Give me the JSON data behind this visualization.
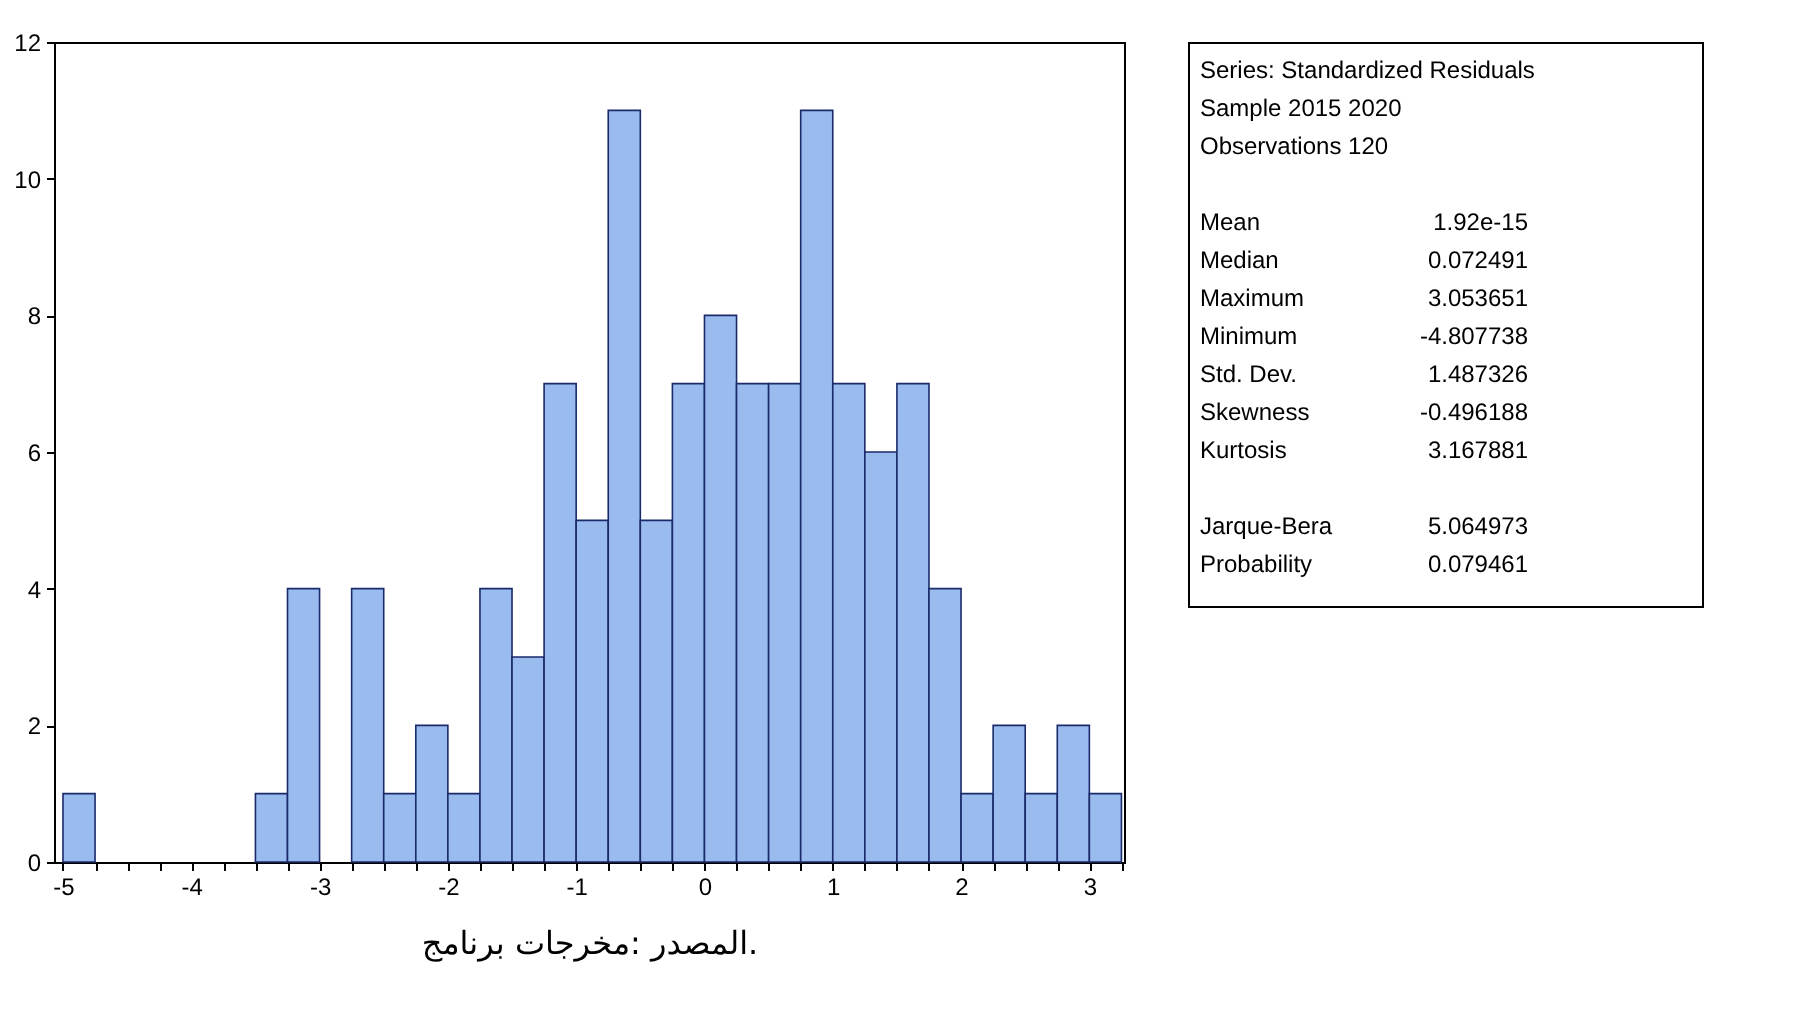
{
  "chart_data": {
    "type": "histogram",
    "bins": [
      -5,
      -4.75,
      -4.5,
      -4.25,
      -4,
      -3.75,
      -3.5,
      -3.25,
      -3,
      -2.75,
      -2.5,
      -2.25,
      -2,
      -1.75,
      -1.5,
      -1.25,
      -1,
      -0.75,
      -0.5,
      -0.25,
      0,
      0.25,
      0.5,
      0.75,
      1,
      1.25,
      1.5,
      1.75,
      2,
      2.25,
      2.5,
      2.75,
      3,
      3.25
    ],
    "values": [
      1,
      0,
      0,
      0,
      0,
      0,
      1,
      4,
      0,
      4,
      1,
      2,
      1,
      4,
      3,
      7,
      5,
      11,
      5,
      7,
      8,
      7,
      7,
      11,
      7,
      6,
      7,
      4,
      1,
      2,
      1,
      2,
      1
    ],
    "color": "#99bbee",
    "xlim": [
      -5.07,
      3.27
    ],
    "xticks": [
      -5,
      {
        "value": -4.75,
        "label": null
      },
      {
        "value": -4.5,
        "label": null
      },
      {
        "value": -4.25,
        "label": null
      },
      -4,
      {
        "value": -3.75,
        "label": null
      },
      {
        "value": -3.5,
        "label": null
      },
      {
        "value": -3.25,
        "label": null
      },
      -3,
      {
        "value": -2.75,
        "label": null
      },
      {
        "value": -2.5,
        "label": null
      },
      {
        "value": -2.25,
        "label": null
      },
      -2,
      {
        "value": -1.75,
        "label": null
      },
      {
        "value": -1.5,
        "label": null
      },
      {
        "value": -1.25,
        "label": null
      },
      -1,
      {
        "value": -0.75,
        "label": null
      },
      {
        "value": -0.5,
        "label": null
      },
      {
        "value": -0.25,
        "label": null
      },
      0,
      {
        "value": 0.25,
        "label": null
      },
      {
        "value": 0.5,
        "label": null
      },
      {
        "value": 0.75,
        "label": null
      },
      1,
      {
        "value": 1.25,
        "label": null
      },
      {
        "value": 1.5,
        "label": null
      },
      {
        "value": 1.75,
        "label": null
      },
      2,
      {
        "value": 2.25,
        "label": null
      },
      {
        "value": 2.5,
        "label": null
      },
      {
        "value": 2.75,
        "label": null
      },
      3,
      {
        "value": 3.25,
        "label": null
      }
    ],
    "ylim": [
      0,
      12
    ],
    "yticks": [
      0,
      2,
      4,
      6,
      8,
      10,
      12
    ],
    "grid": false,
    "annotations": [
      "Series: Standardized Residuals",
      "Sample 2015 2020",
      "Observations 120",
      "Mean 1.92e-15",
      "Median 0.072491",
      "Maximum 3.053651",
      "Minimum -4.807738",
      "Std. Dev. 1.487326",
      "Skewness -0.496188",
      "Kurtosis 3.167881",
      "Jarque-Bera 5.064973",
      "Probability 0.079461",
      "المصدر :مخرجات برنامج."
    ]
  }
}
